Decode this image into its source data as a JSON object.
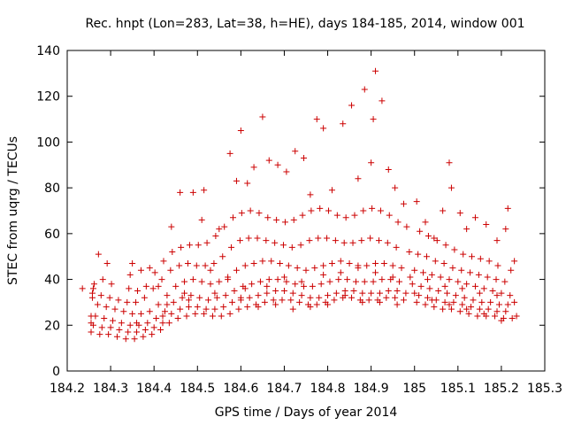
{
  "chart_data": {
    "type": "scatter",
    "title": "Rec. hnpt (Lon=283, Lat=38, h=HE), days 184-185, 2014, window 001",
    "xlabel": "GPS time / Days of year 2014",
    "ylabel": "STEC from uqrg / TECUs",
    "xlim": [
      184.2,
      185.3
    ],
    "ylim": [
      0,
      140
    ],
    "xticks": [
      "184.2",
      "184.3",
      "184.4",
      "184.5",
      "184.6",
      "184.7",
      "184.8",
      "184.9",
      "185",
      "185.1",
      "185.2",
      "185.3"
    ],
    "yticks": [
      "0",
      "20",
      "40",
      "60",
      "80",
      "100",
      "120",
      "140"
    ],
    "marker": "+",
    "color": "#cc0000",
    "grid": false,
    "points": [
      [
        184.255,
        17
      ],
      [
        184.275,
        16
      ],
      [
        184.295,
        16
      ],
      [
        184.315,
        15
      ],
      [
        184.335,
        14
      ],
      [
        184.355,
        14
      ],
      [
        184.375,
        15
      ],
      [
        184.395,
        16
      ],
      [
        184.415,
        18
      ],
      [
        184.435,
        21
      ],
      [
        184.455,
        23
      ],
      [
        184.475,
        24
      ],
      [
        184.495,
        25
      ],
      [
        184.515,
        25
      ],
      [
        184.535,
        24
      ],
      [
        184.555,
        24
      ],
      [
        184.575,
        25
      ],
      [
        184.595,
        27
      ],
      [
        184.615,
        28
      ],
      [
        184.635,
        29
      ],
      [
        184.655,
        30
      ],
      [
        184.675,
        31
      ],
      [
        184.695,
        31
      ],
      [
        184.715,
        31
      ],
      [
        184.735,
        30
      ],
      [
        184.755,
        29
      ],
      [
        184.775,
        29
      ],
      [
        184.795,
        30
      ],
      [
        184.815,
        31
      ],
      [
        184.835,
        32
      ],
      [
        184.855,
        32
      ],
      [
        184.875,
        31
      ],
      [
        184.895,
        31
      ],
      [
        184.915,
        31
      ],
      [
        184.935,
        32
      ],
      [
        184.955,
        32
      ],
      [
        184.975,
        31
      ],
      [
        185.005,
        30
      ],
      [
        185.025,
        29
      ],
      [
        185.045,
        28
      ],
      [
        185.065,
        27
      ],
      [
        185.085,
        27
      ],
      [
        185.105,
        26
      ],
      [
        185.125,
        25
      ],
      [
        185.145,
        24
      ],
      [
        185.165,
        24
      ],
      [
        185.185,
        24
      ],
      [
        185.205,
        23
      ],
      [
        185.225,
        23
      ],
      [
        184.26,
        20
      ],
      [
        184.28,
        19
      ],
      [
        184.3,
        19
      ],
      [
        184.32,
        18
      ],
      [
        184.34,
        17
      ],
      [
        184.36,
        17
      ],
      [
        184.38,
        18
      ],
      [
        184.4,
        19
      ],
      [
        184.42,
        21
      ],
      [
        184.44,
        25
      ],
      [
        184.46,
        27
      ],
      [
        184.48,
        28
      ],
      [
        184.5,
        28
      ],
      [
        184.52,
        27
      ],
      [
        184.54,
        27
      ],
      [
        184.56,
        28
      ],
      [
        184.58,
        30
      ],
      [
        184.6,
        31
      ],
      [
        184.62,
        32
      ],
      [
        184.64,
        33
      ],
      [
        184.66,
        34
      ],
      [
        184.68,
        35
      ],
      [
        184.7,
        35
      ],
      [
        184.72,
        34
      ],
      [
        184.74,
        33
      ],
      [
        184.76,
        32
      ],
      [
        184.78,
        32
      ],
      [
        184.8,
        33
      ],
      [
        184.82,
        34
      ],
      [
        184.84,
        35
      ],
      [
        184.86,
        35
      ],
      [
        184.88,
        34
      ],
      [
        184.9,
        34
      ],
      [
        184.92,
        34
      ],
      [
        184.94,
        35
      ],
      [
        184.96,
        35
      ],
      [
        184.98,
        34
      ],
      [
        185.01,
        33
      ],
      [
        185.03,
        32
      ],
      [
        185.05,
        31
      ],
      [
        185.07,
        30
      ],
      [
        185.09,
        30
      ],
      [
        185.11,
        29
      ],
      [
        185.13,
        28
      ],
      [
        185.15,
        27
      ],
      [
        185.17,
        27
      ],
      [
        185.19,
        26
      ],
      [
        185.21,
        26
      ],
      [
        184.265,
        24
      ],
      [
        184.285,
        23
      ],
      [
        184.305,
        22
      ],
      [
        184.325,
        21
      ],
      [
        184.345,
        20
      ],
      [
        184.365,
        20
      ],
      [
        184.385,
        21
      ],
      [
        184.405,
        23
      ],
      [
        184.425,
        26
      ],
      [
        184.445,
        30
      ],
      [
        184.465,
        32
      ],
      [
        184.485,
        33
      ],
      [
        184.505,
        32
      ],
      [
        184.525,
        31
      ],
      [
        184.545,
        32
      ],
      [
        184.565,
        33
      ],
      [
        184.585,
        35
      ],
      [
        184.605,
        37
      ],
      [
        184.625,
        38
      ],
      [
        184.645,
        39
      ],
      [
        184.665,
        40
      ],
      [
        184.685,
        40
      ],
      [
        184.705,
        39
      ],
      [
        184.725,
        38
      ],
      [
        184.745,
        37
      ],
      [
        184.765,
        37
      ],
      [
        184.785,
        38
      ],
      [
        184.805,
        39
      ],
      [
        184.825,
        40
      ],
      [
        184.845,
        40
      ],
      [
        184.865,
        39
      ],
      [
        184.885,
        39
      ],
      [
        184.905,
        39
      ],
      [
        184.925,
        40
      ],
      [
        184.945,
        40
      ],
      [
        184.965,
        39
      ],
      [
        184.995,
        38
      ],
      [
        185.015,
        37
      ],
      [
        185.035,
        36
      ],
      [
        185.055,
        35
      ],
      [
        185.075,
        34
      ],
      [
        185.095,
        33
      ],
      [
        185.115,
        32
      ],
      [
        185.135,
        31
      ],
      [
        185.155,
        30
      ],
      [
        185.175,
        30
      ],
      [
        185.195,
        29
      ],
      [
        185.215,
        29
      ],
      [
        184.27,
        29
      ],
      [
        184.29,
        28
      ],
      [
        184.31,
        27
      ],
      [
        184.33,
        26
      ],
      [
        184.35,
        25
      ],
      [
        184.37,
        25
      ],
      [
        184.39,
        26
      ],
      [
        184.41,
        29
      ],
      [
        184.43,
        33
      ],
      [
        184.45,
        37
      ],
      [
        184.47,
        39
      ],
      [
        184.49,
        40
      ],
      [
        184.51,
        39
      ],
      [
        184.53,
        38
      ],
      [
        184.55,
        39
      ],
      [
        184.57,
        41
      ],
      [
        184.59,
        44
      ],
      [
        184.61,
        46
      ],
      [
        184.63,
        47
      ],
      [
        184.65,
        48
      ],
      [
        184.67,
        48
      ],
      [
        184.69,
        47
      ],
      [
        184.71,
        46
      ],
      [
        184.73,
        45
      ],
      [
        184.75,
        44
      ],
      [
        184.77,
        45
      ],
      [
        184.79,
        46
      ],
      [
        184.81,
        47
      ],
      [
        184.83,
        48
      ],
      [
        184.85,
        47
      ],
      [
        184.87,
        46
      ],
      [
        184.89,
        46
      ],
      [
        184.91,
        47
      ],
      [
        184.93,
        47
      ],
      [
        184.95,
        46
      ],
      [
        184.97,
        45
      ],
      [
        185.0,
        44
      ],
      [
        185.02,
        43
      ],
      [
        185.04,
        42
      ],
      [
        185.06,
        41
      ],
      [
        185.08,
        40
      ],
      [
        185.1,
        39
      ],
      [
        185.12,
        38
      ],
      [
        185.14,
        37
      ],
      [
        185.16,
        36
      ],
      [
        185.18,
        35
      ],
      [
        185.2,
        34
      ],
      [
        185.22,
        33
      ],
      [
        184.258,
        34
      ],
      [
        184.278,
        33
      ],
      [
        184.298,
        32
      ],
      [
        184.318,
        31
      ],
      [
        184.338,
        30
      ],
      [
        184.358,
        30
      ],
      [
        184.378,
        32
      ],
      [
        184.398,
        36
      ],
      [
        184.418,
        40
      ],
      [
        184.438,
        44
      ],
      [
        184.458,
        46
      ],
      [
        184.478,
        47
      ],
      [
        184.498,
        46
      ],
      [
        184.518,
        46
      ],
      [
        184.538,
        47
      ],
      [
        184.558,
        50
      ],
      [
        184.578,
        54
      ],
      [
        184.598,
        57
      ],
      [
        184.618,
        58
      ],
      [
        184.638,
        58
      ],
      [
        184.658,
        57
      ],
      [
        184.678,
        56
      ],
      [
        184.698,
        55
      ],
      [
        184.718,
        54
      ],
      [
        184.738,
        55
      ],
      [
        184.758,
        57
      ],
      [
        184.778,
        58
      ],
      [
        184.798,
        58
      ],
      [
        184.818,
        57
      ],
      [
        184.838,
        56
      ],
      [
        184.858,
        56
      ],
      [
        184.878,
        57
      ],
      [
        184.898,
        58
      ],
      [
        184.918,
        57
      ],
      [
        184.938,
        56
      ],
      [
        184.958,
        54
      ],
      [
        184.988,
        52
      ],
      [
        185.008,
        51
      ],
      [
        185.028,
        50
      ],
      [
        185.048,
        48
      ],
      [
        185.068,
        47
      ],
      [
        185.088,
        45
      ],
      [
        185.108,
        44
      ],
      [
        185.128,
        43
      ],
      [
        185.148,
        42
      ],
      [
        185.168,
        41
      ],
      [
        185.188,
        40
      ],
      [
        185.208,
        39
      ],
      [
        184.262,
        38
      ],
      [
        184.282,
        40
      ],
      [
        184.302,
        38
      ],
      [
        184.342,
        36
      ],
      [
        184.362,
        35
      ],
      [
        184.382,
        37
      ],
      [
        184.402,
        43
      ],
      [
        184.422,
        48
      ],
      [
        184.442,
        52
      ],
      [
        184.462,
        54
      ],
      [
        184.482,
        55
      ],
      [
        184.502,
        55
      ],
      [
        184.522,
        56
      ],
      [
        184.542,
        59
      ],
      [
        184.562,
        63
      ],
      [
        184.582,
        67
      ],
      [
        184.602,
        69
      ],
      [
        184.622,
        70
      ],
      [
        184.642,
        69
      ],
      [
        184.662,
        67
      ],
      [
        184.682,
        66
      ],
      [
        184.702,
        65
      ],
      [
        184.722,
        66
      ],
      [
        184.742,
        68
      ],
      [
        184.762,
        70
      ],
      [
        184.782,
        71
      ],
      [
        184.802,
        70
      ],
      [
        184.822,
        68
      ],
      [
        184.842,
        67
      ],
      [
        184.862,
        68
      ],
      [
        184.882,
        70
      ],
      [
        184.902,
        71
      ],
      [
        184.922,
        70
      ],
      [
        184.942,
        68
      ],
      [
        184.962,
        65
      ],
      [
        184.982,
        63
      ],
      [
        185.012,
        61
      ],
      [
        185.032,
        59
      ],
      [
        185.052,
        57
      ],
      [
        185.072,
        55
      ],
      [
        185.092,
        53
      ],
      [
        185.112,
        51
      ],
      [
        185.132,
        50
      ],
      [
        185.152,
        49
      ],
      [
        185.172,
        48
      ],
      [
        185.192,
        46
      ],
      [
        185.222,
        44
      ],
      [
        184.272,
        51
      ],
      [
        184.292,
        47
      ],
      [
        184.35,
        47
      ],
      [
        184.37,
        44
      ],
      [
        184.39,
        45
      ],
      [
        184.44,
        63
      ],
      [
        184.46,
        78
      ],
      [
        184.49,
        78
      ],
      [
        184.51,
        66
      ],
      [
        184.515,
        79
      ],
      [
        184.55,
        62
      ],
      [
        184.575,
        95
      ],
      [
        184.59,
        83
      ],
      [
        184.6,
        105
      ],
      [
        184.615,
        82
      ],
      [
        184.63,
        89
      ],
      [
        184.65,
        111
      ],
      [
        184.665,
        92
      ],
      [
        184.685,
        90
      ],
      [
        184.705,
        87
      ],
      [
        184.725,
        96
      ],
      [
        184.745,
        93
      ],
      [
        184.76,
        77
      ],
      [
        184.775,
        110
      ],
      [
        184.79,
        106
      ],
      [
        184.81,
        79
      ],
      [
        184.835,
        108
      ],
      [
        184.855,
        116
      ],
      [
        184.87,
        84
      ],
      [
        184.885,
        123
      ],
      [
        184.9,
        91
      ],
      [
        184.91,
        131
      ],
      [
        184.905,
        110
      ],
      [
        184.925,
        118
      ],
      [
        184.94,
        88
      ],
      [
        184.955,
        80
      ],
      [
        184.975,
        73
      ],
      [
        185.005,
        74
      ],
      [
        185.025,
        65
      ],
      [
        185.045,
        58
      ],
      [
        185.065,
        70
      ],
      [
        185.08,
        91
      ],
      [
        185.085,
        80
      ],
      [
        185.105,
        69
      ],
      [
        185.12,
        62
      ],
      [
        185.14,
        67
      ],
      [
        185.165,
        64
      ],
      [
        185.19,
        57
      ],
      [
        185.21,
        62
      ],
      [
        185.215,
        71
      ],
      [
        185.23,
        48
      ],
      [
        184.345,
        42
      ],
      [
        184.41,
        37
      ],
      [
        184.43,
        29
      ],
      [
        184.47,
        34
      ],
      [
        184.53,
        44
      ],
      [
        184.57,
        40
      ],
      [
        184.61,
        36
      ],
      [
        184.66,
        37
      ],
      [
        184.7,
        41
      ],
      [
        184.74,
        39
      ],
      [
        184.79,
        42
      ],
      [
        184.83,
        43
      ],
      [
        184.87,
        45
      ],
      [
        184.91,
        43
      ],
      [
        184.95,
        41
      ],
      [
        184.99,
        41
      ],
      [
        185.03,
        40
      ],
      [
        185.07,
        37
      ],
      [
        185.11,
        36
      ],
      [
        185.15,
        34
      ],
      [
        185.19,
        33
      ],
      [
        185.23,
        30
      ],
      [
        184.36,
        21
      ],
      [
        184.42,
        24
      ],
      [
        184.48,
        31
      ],
      [
        184.54,
        34
      ],
      [
        184.6,
        32
      ],
      [
        184.64,
        28
      ],
      [
        184.68,
        29
      ],
      [
        184.72,
        27
      ],
      [
        184.76,
        28
      ],
      [
        184.8,
        29
      ],
      [
        184.84,
        33
      ],
      [
        184.88,
        30
      ],
      [
        184.92,
        30
      ],
      [
        184.96,
        29
      ],
      [
        185.0,
        34
      ],
      [
        185.04,
        31
      ],
      [
        185.08,
        29
      ],
      [
        185.12,
        27
      ],
      [
        185.16,
        25
      ],
      [
        185.2,
        22
      ],
      [
        185.235,
        24
      ],
      [
        184.255,
        21
      ],
      [
        184.255,
        24
      ],
      [
        184.258,
        32
      ],
      [
        184.26,
        36
      ],
      [
        184.235,
        36
      ]
    ]
  }
}
